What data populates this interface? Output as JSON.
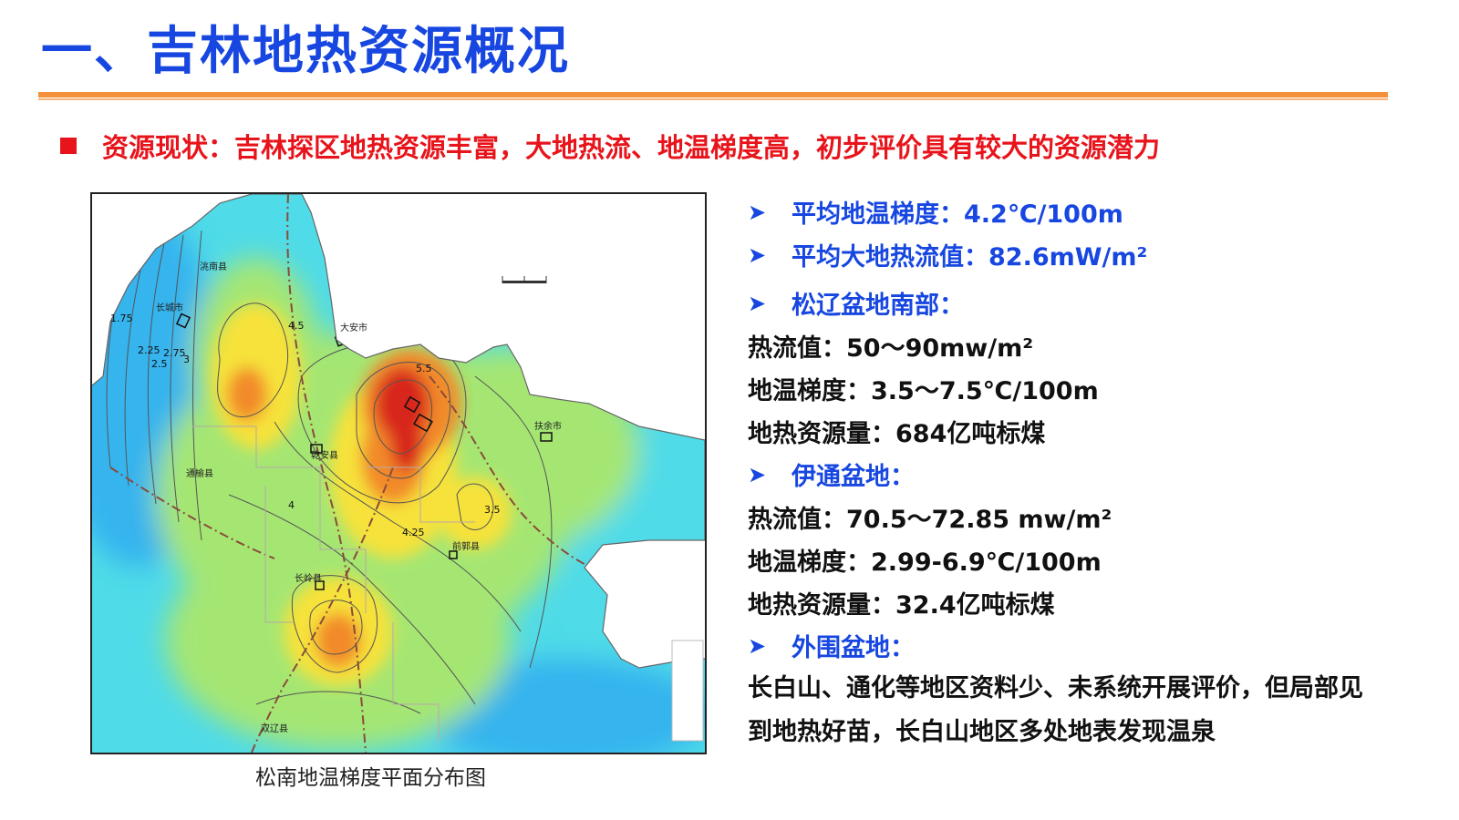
{
  "slide": {
    "title": "一、吉林地热资源概况",
    "headline": "资源现状：吉林探区地热资源丰富，大地热流、地温梯度高，初步评价具有较大的资源潜力"
  },
  "map": {
    "caption": "松南地温梯度平面分布图",
    "place_labels": [
      "洮南县",
      "长城市",
      "大安市",
      "扶余市",
      "乾安县",
      "通榆县",
      "长岭县",
      "双辽县",
      "前郭县"
    ],
    "contour_labels": [
      "1.75",
      "2.25",
      "2.5",
      "2.75",
      "3",
      "4",
      "4.5",
      "4.25",
      "5.5",
      "3.5"
    ],
    "colors": {
      "blue": "#35b4ee",
      "cyan": "#4fdbe8",
      "green": "#a5e673",
      "yellow": "#f6e23a",
      "orange": "#f28a2b",
      "red": "#d8261a"
    }
  },
  "panel": {
    "avg_gradient": "平均地温梯度：4.2℃/100m",
    "avg_heat_flow": "平均大地热流值：82.6mW/m²",
    "songliao_heading": "松辽盆地南部：",
    "songliao_heat_flow": "热流值：50～90mw/m²",
    "songliao_gradient": "地温梯度：3.5～7.5℃/100m",
    "songliao_resource": "地热资源量：684亿吨标煤",
    "yitong_heading": "伊通盆地：",
    "yitong_heat_flow": "热流值：70.5～72.85 mw/m²",
    "yitong_gradient": "地温梯度：2.99-6.9℃/100m",
    "yitong_resource": "地热资源量：32.4亿吨标煤",
    "outer_heading": "外围盆地：",
    "outer_text": "长白山、通化等地区资料少、未系统开展评价，但局部见到地热好苗，长白山地区多处地表发现温泉"
  },
  "colors": {
    "title_blue": "#1747e0",
    "headline_red": "#e8141b",
    "rule_orange": "#f4903a"
  }
}
